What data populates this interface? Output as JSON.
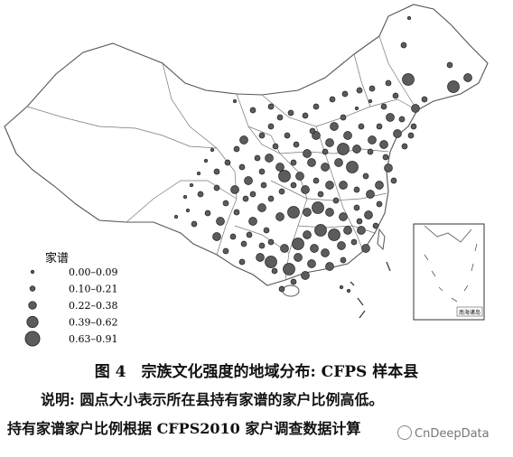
{
  "legend": {
    "title": "家谱",
    "items": [
      "0.00–0.09",
      "0.10–0.21",
      "0.22–0.38",
      "0.39–0.62",
      "0.63–0.91"
    ]
  },
  "inset": {
    "label": "南海诸岛"
  },
  "caption": {
    "title": "图 4　宗族文化强度的地域分布: CFPS 样本县",
    "note_line1": "说明: 圆点大小表示所在县持有家谱的家户比例高低。",
    "note_line2": "持有家谱家户比例根据 CFPS2010 家户调查数据计算"
  },
  "watermark": {
    "text": "CnDeepData",
    "icon": "wechat-logo-icon"
  },
  "colors": {
    "dot_fill": "#5c5c5c",
    "dot_stroke": "#222222",
    "boundary": "#555555"
  },
  "chart_data": {
    "type": "scatter",
    "title": "宗族文化强度的地域分布: CFPS 样本县",
    "size_classes": [
      "0.00–0.09",
      "0.10–0.21",
      "0.22–0.38",
      "0.39–0.62",
      "0.63–0.91"
    ],
    "size_class_units": "share of households holding a genealogy (家谱)"
  }
}
